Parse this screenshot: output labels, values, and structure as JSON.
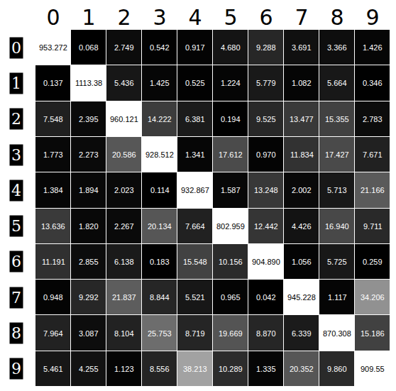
{
  "chart_data": {
    "type": "heatmap",
    "x": [
      "0",
      "1",
      "2",
      "3",
      "4",
      "5",
      "6",
      "7",
      "8",
      "9"
    ],
    "y": [
      "0",
      "1",
      "2",
      "3",
      "4",
      "5",
      "6",
      "7",
      "8",
      "9"
    ],
    "cells": [
      [
        953.272,
        0.068,
        2.749,
        0.542,
        0.917,
        4.68,
        9.288,
        3.691,
        3.366,
        1.426
      ],
      [
        0.137,
        1113.38,
        5.436,
        1.425,
        0.525,
        1.224,
        5.779,
        1.082,
        5.664,
        0.346
      ],
      [
        7.548,
        2.395,
        960.121,
        14.222,
        6.381,
        0.194,
        9.525,
        13.477,
        15.355,
        2.783
      ],
      [
        1.773,
        2.273,
        20.586,
        928.512,
        1.341,
        17.612,
        0.97,
        11.834,
        17.427,
        7.671
      ],
      [
        1.384,
        1.894,
        2.023,
        0.114,
        932.867,
        1.587,
        13.248,
        2.002,
        5.713,
        21.166
      ],
      [
        13.636,
        1.82,
        2.267,
        20.134,
        7.664,
        802.959,
        12.442,
        4.426,
        16.94,
        9.711
      ],
      [
        11.191,
        2.855,
        6.138,
        0.183,
        15.548,
        10.156,
        904.89,
        1.056,
        5.725,
        0.259
      ],
      [
        0.948,
        9.292,
        21.837,
        8.844,
        5.521,
        0.965,
        0.042,
        945.228,
        1.117,
        34.206
      ],
      [
        7.964,
        3.087,
        8.104,
        25.753,
        8.719,
        19.669,
        8.87,
        6.339,
        870.308,
        15.186
      ],
      [
        5.461,
        4.255,
        1.123,
        8.556,
        38.213,
        10.289,
        1.335,
        20.352,
        9.86,
        909.55
      ]
    ],
    "value_labels": [
      [
        "953.272",
        "0.068",
        "2.749",
        "0.542",
        "0.917",
        "4.680",
        "9.288",
        "3.691",
        "3.366",
        "1.426"
      ],
      [
        "0.137",
        "1113.38",
        "5.436",
        "1.425",
        "0.525",
        "1.224",
        "5.779",
        "1.082",
        "5.664",
        "0.346"
      ],
      [
        "7.548",
        "2.395",
        "960.121",
        "14.222",
        "6.381",
        "0.194",
        "9.525",
        "13.477",
        "15.355",
        "2.783"
      ],
      [
        "1.773",
        "2.273",
        "20.586",
        "928.512",
        "1.341",
        "17.612",
        "0.970",
        "11.834",
        "17.427",
        "7.671"
      ],
      [
        "1.384",
        "1.894",
        "2.023",
        "0.114",
        "932.867",
        "1.587",
        "13.248",
        "2.002",
        "5.713",
        "21.166"
      ],
      [
        "13.636",
        "1.820",
        "2.267",
        "20.134",
        "7.664",
        "802.959",
        "12.442",
        "4.426",
        "16.940",
        "9.711"
      ],
      [
        "11.191",
        "2.855",
        "6.138",
        "0.183",
        "15.548",
        "10.156",
        "904.890",
        "1.056",
        "5.725",
        "0.259"
      ],
      [
        "0.948",
        "9.292",
        "21.837",
        "8.844",
        "5.521",
        "0.965",
        "0.042",
        "945.228",
        "1.117",
        "34.206"
      ],
      [
        "7.964",
        "3.087",
        "8.104",
        "25.753",
        "8.719",
        "19.669",
        "8.870",
        "6.339",
        "870.308",
        "15.186"
      ],
      [
        "5.461",
        "4.255",
        "1.123",
        "8.556",
        "38.213",
        "10.289",
        "1.335",
        "20.352",
        "9.860",
        "909.55"
      ]
    ],
    "zlim": [
      0,
      60
    ]
  }
}
